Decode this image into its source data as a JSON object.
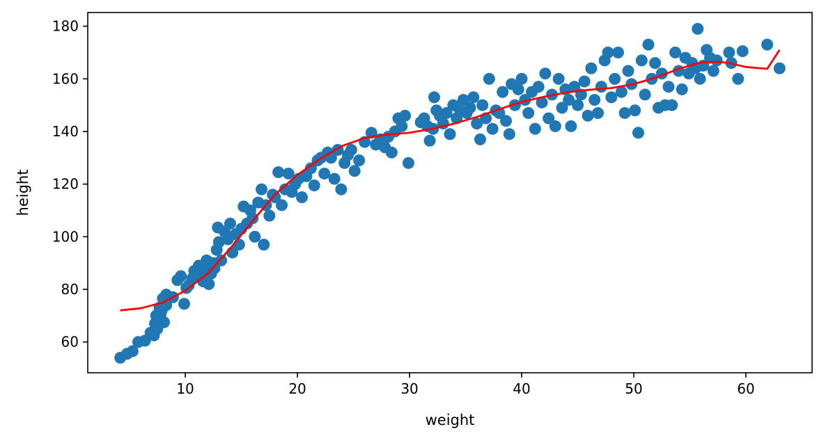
{
  "chart_data": {
    "type": "scatter",
    "title": "",
    "xlabel": "weight",
    "ylabel": "height",
    "xlim": [
      1.3,
      65.9
    ],
    "ylim": [
      48.3,
      185.2
    ],
    "xticks": [
      10,
      20,
      30,
      40,
      50,
      60
    ],
    "yticks": [
      60,
      80,
      100,
      120,
      140,
      160,
      180
    ],
    "grid": false,
    "colors": {
      "points": "#1f77b4",
      "fit_line": "#ff0000"
    },
    "points": [
      [
        4.2,
        54
      ],
      [
        4.8,
        55.5
      ],
      [
        5.3,
        56.5
      ],
      [
        5.8,
        60
      ],
      [
        6.4,
        60.5
      ],
      [
        6.9,
        63.5
      ],
      [
        7.2,
        62.5
      ],
      [
        7.5,
        65
      ],
      [
        7.3,
        67
      ],
      [
        7.6,
        68
      ],
      [
        7.8,
        70.5
      ],
      [
        8.1,
        67.5
      ],
      [
        7.9,
        72
      ],
      [
        8.3,
        74
      ],
      [
        7.4,
        70
      ],
      [
        7.7,
        73
      ],
      [
        8.0,
        76.5
      ],
      [
        8.3,
        78
      ],
      [
        8.9,
        77
      ],
      [
        9.3,
        83.5
      ],
      [
        9.6,
        85
      ],
      [
        9.9,
        74.5
      ],
      [
        10.1,
        80.5
      ],
      [
        10.3,
        81.5
      ],
      [
        10.6,
        84
      ],
      [
        10.8,
        87
      ],
      [
        11.0,
        86
      ],
      [
        11.2,
        89
      ],
      [
        11.4,
        84.5
      ],
      [
        11.6,
        83
      ],
      [
        11.8,
        88
      ],
      [
        11.9,
        91
      ],
      [
        12.1,
        82
      ],
      [
        12.3,
        86
      ],
      [
        12.5,
        90
      ],
      [
        12.6,
        88
      ],
      [
        12.8,
        95
      ],
      [
        13.0,
        98
      ],
      [
        12.9,
        103.5
      ],
      [
        13.2,
        91
      ],
      [
        13.5,
        102
      ],
      [
        13.8,
        99
      ],
      [
        14.0,
        105
      ],
      [
        14.2,
        94
      ],
      [
        14.5,
        101
      ],
      [
        14.8,
        97
      ],
      [
        15.0,
        103
      ],
      [
        15.2,
        111.5
      ],
      [
        15.5,
        105
      ],
      [
        15.8,
        110
      ],
      [
        16.0,
        107
      ],
      [
        16.2,
        100
      ],
      [
        16.5,
        113
      ],
      [
        16.8,
        118
      ],
      [
        17.0,
        97
      ],
      [
        17.2,
        112
      ],
      [
        17.5,
        108
      ],
      [
        17.8,
        116
      ],
      [
        18.0,
        115
      ],
      [
        18.3,
        124.5
      ],
      [
        18.6,
        112
      ],
      [
        18.9,
        118
      ],
      [
        19.2,
        124
      ],
      [
        19.5,
        117
      ],
      [
        19.8,
        120
      ],
      [
        20.1,
        122
      ],
      [
        20.4,
        115
      ],
      [
        20.8,
        123
      ],
      [
        21.2,
        126
      ],
      [
        21.5,
        119.5
      ],
      [
        21.8,
        129
      ],
      [
        22.1,
        130
      ],
      [
        22.4,
        124
      ],
      [
        22.7,
        132
      ],
      [
        23.0,
        130
      ],
      [
        23.3,
        122
      ],
      [
        23.6,
        133
      ],
      [
        23.9,
        118
      ],
      [
        24.2,
        128
      ],
      [
        24.5,
        131
      ],
      [
        24.8,
        133
      ],
      [
        25.1,
        125
      ],
      [
        25.5,
        129
      ],
      [
        26.0,
        136
      ],
      [
        26.6,
        139.5
      ],
      [
        27.0,
        135
      ],
      [
        27.4,
        137
      ],
      [
        27.8,
        134
      ],
      [
        28.1,
        138
      ],
      [
        28.4,
        132
      ],
      [
        28.7,
        140
      ],
      [
        29.0,
        145
      ],
      [
        29.3,
        142
      ],
      [
        29.6,
        146
      ],
      [
        29.9,
        128
      ],
      [
        31.0,
        143.5
      ],
      [
        31.3,
        145
      ],
      [
        31.6,
        142
      ],
      [
        31.8,
        136.5
      ],
      [
        32.1,
        141
      ],
      [
        32.4,
        148
      ],
      [
        32.2,
        153
      ],
      [
        32.7,
        146
      ],
      [
        33.0,
        143
      ],
      [
        33.3,
        147
      ],
      [
        33.6,
        139
      ],
      [
        33.9,
        150
      ],
      [
        34.2,
        145
      ],
      [
        34.5,
        148
      ],
      [
        34.8,
        152
      ],
      [
        35.1,
        147
      ],
      [
        35.4,
        149
      ],
      [
        35.7,
        153
      ],
      [
        36.0,
        143
      ],
      [
        36.3,
        137
      ],
      [
        36.5,
        150
      ],
      [
        36.8,
        145
      ],
      [
        37.1,
        160
      ],
      [
        37.4,
        141
      ],
      [
        37.7,
        148
      ],
      [
        38.0,
        147
      ],
      [
        38.3,
        155
      ],
      [
        38.6,
        144
      ],
      [
        38.9,
        139
      ],
      [
        39.1,
        158
      ],
      [
        39.4,
        150
      ],
      [
        39.7,
        156
      ],
      [
        40.0,
        160
      ],
      [
        40.3,
        152
      ],
      [
        40.6,
        147
      ],
      [
        40.9,
        155
      ],
      [
        41.2,
        141
      ],
      [
        41.5,
        157
      ],
      [
        41.8,
        151
      ],
      [
        42.1,
        162
      ],
      [
        42.4,
        145
      ],
      [
        42.7,
        154
      ],
      [
        43.0,
        142
      ],
      [
        43.3,
        160
      ],
      [
        43.6,
        149
      ],
      [
        43.9,
        156
      ],
      [
        44.2,
        152
      ],
      [
        44.4,
        142
      ],
      [
        44.7,
        157
      ],
      [
        45.0,
        150
      ],
      [
        45.3,
        154
      ],
      [
        45.6,
        159
      ],
      [
        45.9,
        146
      ],
      [
        46.2,
        164
      ],
      [
        46.5,
        152
      ],
      [
        46.8,
        147
      ],
      [
        47.1,
        157
      ],
      [
        47.4,
        167
      ],
      [
        47.7,
        170
      ],
      [
        48.0,
        153
      ],
      [
        48.3,
        160
      ],
      [
        48.6,
        170
      ],
      [
        48.9,
        155
      ],
      [
        49.2,
        147
      ],
      [
        49.5,
        163
      ],
      [
        49.8,
        158
      ],
      [
        50.1,
        148
      ],
      [
        50.4,
        139.5
      ],
      [
        50.7,
        167
      ],
      [
        51.0,
        154
      ],
      [
        51.3,
        173
      ],
      [
        51.6,
        160
      ],
      [
        51.9,
        166
      ],
      [
        52.2,
        149
      ],
      [
        52.5,
        162
      ],
      [
        52.8,
        150
      ],
      [
        53.1,
        157
      ],
      [
        53.4,
        150
      ],
      [
        53.7,
        170
      ],
      [
        54.0,
        163
      ],
      [
        54.3,
        156
      ],
      [
        54.6,
        168
      ],
      [
        54.9,
        162
      ],
      [
        55.2,
        166
      ],
      [
        55.5,
        164
      ],
      [
        55.7,
        179
      ],
      [
        55.9,
        160
      ],
      [
        56.2,
        165
      ],
      [
        56.5,
        171
      ],
      [
        56.8,
        168
      ],
      [
        57.1,
        163
      ],
      [
        57.4,
        167
      ],
      [
        58.5,
        170
      ],
      [
        58.7,
        166
      ],
      [
        59.3,
        160
      ],
      [
        59.7,
        170.5
      ],
      [
        61.9,
        173
      ],
      [
        63.0,
        164
      ]
    ],
    "fit_line": [
      [
        4.2,
        72
      ],
      [
        6,
        72.8
      ],
      [
        8,
        75
      ],
      [
        10,
        79.5
      ],
      [
        12,
        86
      ],
      [
        14,
        95.5
      ],
      [
        16,
        106
      ],
      [
        18,
        116
      ],
      [
        20,
        123.5
      ],
      [
        22,
        129.5
      ],
      [
        24,
        134.5
      ],
      [
        26,
        137.5
      ],
      [
        28,
        138.8
      ],
      [
        30,
        139.5
      ],
      [
        32,
        141
      ],
      [
        34,
        143
      ],
      [
        36,
        145.5
      ],
      [
        38,
        148.5
      ],
      [
        40,
        151.2
      ],
      [
        42,
        153.2
      ],
      [
        44,
        154.8
      ],
      [
        46,
        155.8
      ],
      [
        48,
        156.5
      ],
      [
        50,
        158
      ],
      [
        52,
        160.5
      ],
      [
        54,
        163.8
      ],
      [
        56,
        166.2
      ],
      [
        57.5,
        166.5
      ],
      [
        58.5,
        166
      ],
      [
        60,
        164.5
      ],
      [
        61.9,
        163.8
      ],
      [
        63,
        171
      ]
    ]
  }
}
